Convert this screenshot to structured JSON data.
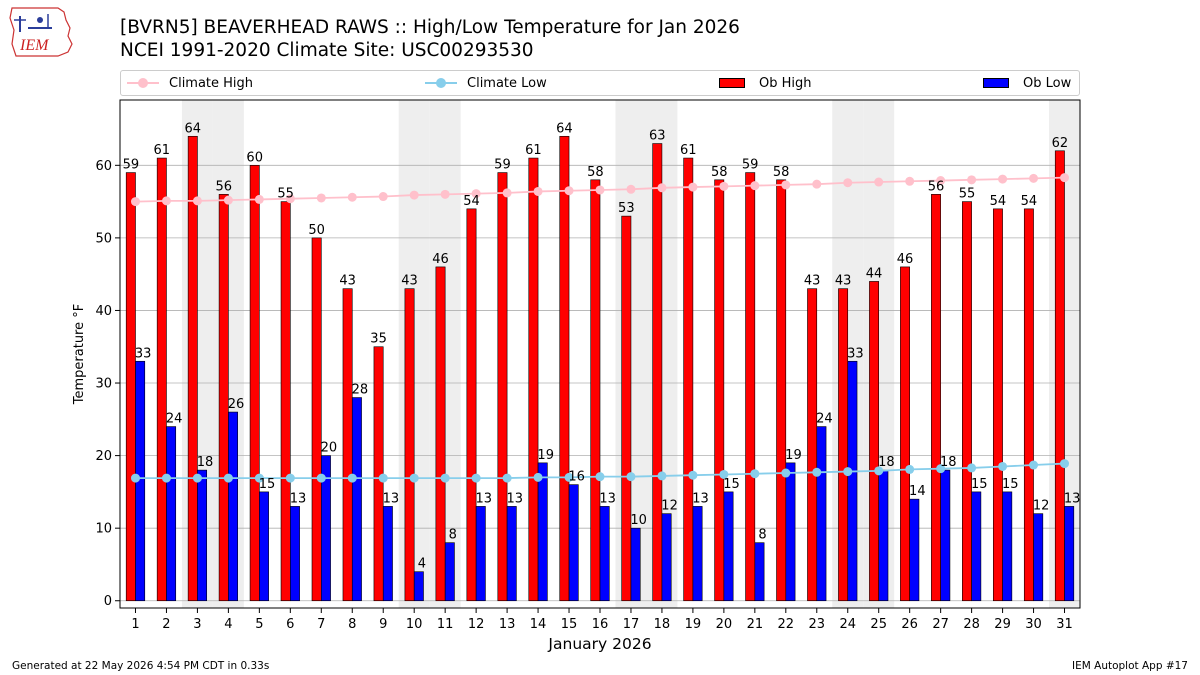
{
  "header": {
    "logo_text": "IEM",
    "title_line1": "[BVRN5] BEAVERHEAD RAWS :: High/Low Temperature for Jan 2026",
    "title_line2": "NCEI 1991-2020 Climate Site: USC00293530"
  },
  "legend": {
    "climate_high": "Climate High",
    "climate_low": "Climate Low",
    "ob_high": "Ob High",
    "ob_low": "Ob Low"
  },
  "colors": {
    "ob_high": "#ff0000",
    "ob_low": "#0000ff",
    "climate_high": "#ffc0cb",
    "climate_low": "#87ceeb",
    "weekend_band": "#eeeeee",
    "grid": "#b0b0b0"
  },
  "chart_data": {
    "type": "bar",
    "xlabel": "January 2026",
    "ylabel": "Temperature °F",
    "ylim": [
      -1,
      69
    ],
    "yticks": [
      0,
      10,
      20,
      30,
      40,
      50,
      60
    ],
    "grid": true,
    "legend_position": "top",
    "categories": [
      "1",
      "2",
      "3",
      "4",
      "5",
      "6",
      "7",
      "8",
      "9",
      "10",
      "11",
      "12",
      "13",
      "14",
      "15",
      "16",
      "17",
      "18",
      "19",
      "20",
      "21",
      "22",
      "23",
      "24",
      "25",
      "26",
      "27",
      "28",
      "29",
      "30",
      "31"
    ],
    "shaded_days": [
      3,
      4,
      10,
      11,
      17,
      18,
      24,
      25,
      31
    ],
    "series": [
      {
        "name": "Ob High",
        "kind": "bar",
        "values": [
          59,
          61,
          64,
          56,
          60,
          55,
          50,
          43,
          35,
          43,
          46,
          54,
          59,
          61,
          64,
          58,
          53,
          63,
          61,
          58,
          59,
          58,
          43,
          43,
          44,
          46,
          56,
          55,
          54,
          54,
          62
        ]
      },
      {
        "name": "Ob Low",
        "kind": "bar",
        "values": [
          33,
          24,
          18,
          26,
          15,
          13,
          20,
          28,
          13,
          4,
          8,
          13,
          13,
          19,
          16,
          13,
          10,
          12,
          13,
          15,
          8,
          19,
          24,
          33,
          18,
          14,
          18,
          15,
          15,
          12,
          13
        ]
      },
      {
        "name": "Climate High",
        "kind": "line",
        "values": [
          55.0,
          55.1,
          55.1,
          55.2,
          55.3,
          55.4,
          55.5,
          55.6,
          55.7,
          55.9,
          56.0,
          56.1,
          56.2,
          56.4,
          56.5,
          56.6,
          56.7,
          56.9,
          57.0,
          57.1,
          57.2,
          57.3,
          57.4,
          57.6,
          57.7,
          57.8,
          57.9,
          58.0,
          58.1,
          58.2,
          58.3
        ]
      },
      {
        "name": "Climate Low",
        "kind": "line",
        "values": [
          16.9,
          16.9,
          16.9,
          16.9,
          16.9,
          16.9,
          16.9,
          16.9,
          16.9,
          16.9,
          16.9,
          16.9,
          16.9,
          17.0,
          17.0,
          17.1,
          17.1,
          17.2,
          17.3,
          17.4,
          17.5,
          17.6,
          17.7,
          17.8,
          17.9,
          18.1,
          18.2,
          18.3,
          18.5,
          18.7,
          18.9
        ]
      }
    ]
  },
  "footer": {
    "generated": "Generated at 22 May 2026 4:54 PM CDT in 0.33s",
    "app": "IEM Autoplot App #17"
  }
}
